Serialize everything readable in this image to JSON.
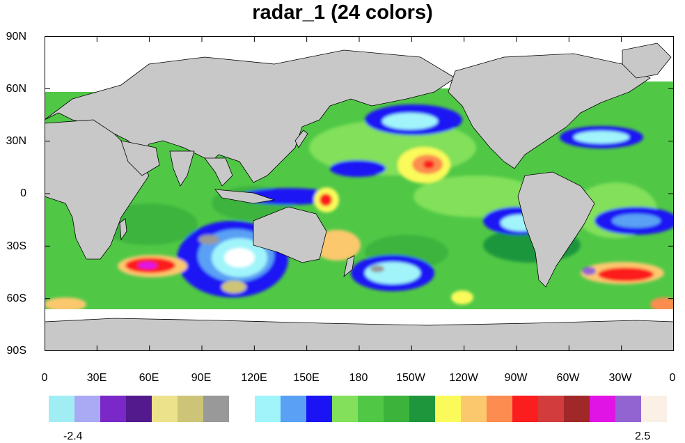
{
  "title": "radar_1 (24 colors)",
  "lat_labels": [
    "90N",
    "60N",
    "30N",
    "0",
    "30S",
    "60S",
    "90S"
  ],
  "lon_labels": [
    "0",
    "30E",
    "60E",
    "90E",
    "120E",
    "150E",
    "180",
    "150W",
    "120W",
    "90W",
    "60W",
    "30W",
    "0"
  ],
  "colorbar": {
    "min_label": "-2.4",
    "max_label": "2.5",
    "colors": [
      "#a0eef4",
      "#aaaaf4",
      "#7a28c8",
      "#521a8c",
      "#ede28c",
      "#cdc478",
      "#999999",
      "#ffffff",
      "#a0f4fa",
      "#5aa0f4",
      "#1a14f4",
      "#82e05a",
      "#50c846",
      "#3cb43c",
      "#1e963c",
      "#fafa5a",
      "#fcc86e",
      "#fc8c50",
      "#fc1e1e",
      "#d23c3c",
      "#a02828",
      "#e114e6",
      "#9164d2",
      "#faf0e6"
    ]
  },
  "colors": {
    "land": "#c8c8c8",
    "ocean_base": "#50c846",
    "ice": "#ffffff"
  }
}
